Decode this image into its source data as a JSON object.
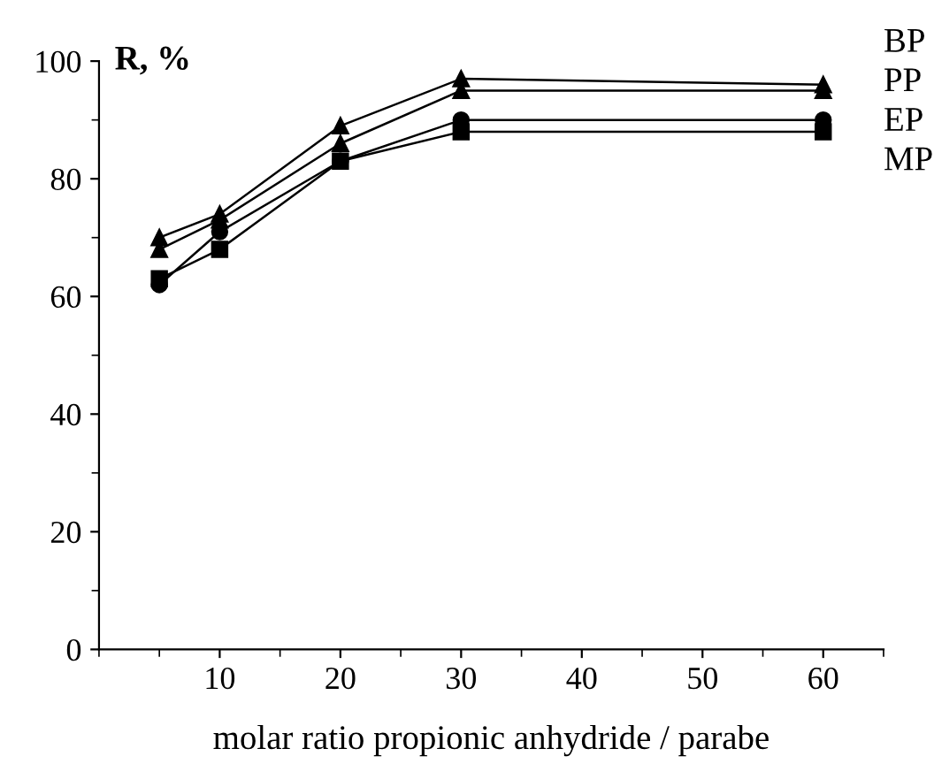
{
  "chart_data": {
    "type": "line",
    "ylabel": "R, %",
    "xlabel": "molar ratio propionic anhydride / parabe",
    "x": [
      5,
      10,
      20,
      30,
      60
    ],
    "series": [
      {
        "name": "BP",
        "color": "#000000",
        "marker": "triangle",
        "values": [
          70,
          74,
          89,
          97,
          96
        ]
      },
      {
        "name": "PP",
        "color": "#000000",
        "marker": "triangle",
        "values": [
          68,
          73,
          86,
          95,
          95
        ]
      },
      {
        "name": "EP",
        "color": "#000000",
        "marker": "circle",
        "values": [
          62,
          71,
          83,
          90,
          90
        ]
      },
      {
        "name": "MP",
        "color": "#000000",
        "marker": "square",
        "values": [
          63,
          68,
          83,
          88,
          88
        ]
      }
    ],
    "xlim": [
      0,
      65
    ],
    "ylim": [
      0,
      100
    ],
    "xticks": [
      10,
      20,
      30,
      40,
      50,
      60
    ],
    "yticks": [
      0,
      20,
      40,
      60,
      80,
      100
    ],
    "grid": false,
    "legend": false,
    "line_style": "solid"
  }
}
